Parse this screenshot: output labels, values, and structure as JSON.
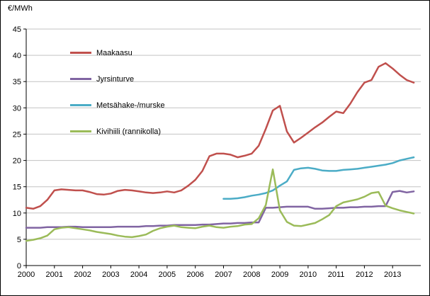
{
  "chart_data": {
    "type": "line",
    "title": "",
    "xlabel": "",
    "ylabel": "€/MWh",
    "ylim": [
      0,
      45
    ],
    "ytick_step": 5,
    "xlim": [
      2000,
      2014
    ],
    "xticks": [
      2000,
      2001,
      2002,
      2003,
      2004,
      2005,
      2006,
      2007,
      2008,
      2009,
      2010,
      2011,
      2012,
      2013
    ],
    "grid": true,
    "legend_position": "top-left-inside",
    "series": [
      {
        "name": "Maakaasu",
        "color": "#c0504d",
        "x_start": 2000,
        "x_step": 0.25,
        "values": [
          11.0,
          10.8,
          11.3,
          12.5,
          14.3,
          14.5,
          14.4,
          14.3,
          14.3,
          14.0,
          13.6,
          13.5,
          13.7,
          14.2,
          14.4,
          14.3,
          14.1,
          13.9,
          13.8,
          13.9,
          14.1,
          13.9,
          14.3,
          15.2,
          16.3,
          18.0,
          20.8,
          21.3,
          21.3,
          21.1,
          20.6,
          20.9,
          21.3,
          22.8,
          26.0,
          29.5,
          30.4,
          25.5,
          23.4,
          24.3,
          25.3,
          26.3,
          27.2,
          28.3,
          29.3,
          29.0,
          30.8,
          33.0,
          34.8,
          35.3,
          37.8,
          38.5,
          37.5,
          36.3,
          35.3,
          34.8
        ]
      },
      {
        "name": "Jyrsinturve",
        "color": "#8064a2",
        "x_start": 2000,
        "x_step": 0.25,
        "values": [
          7.2,
          7.2,
          7.2,
          7.3,
          7.3,
          7.3,
          7.4,
          7.4,
          7.3,
          7.3,
          7.3,
          7.3,
          7.3,
          7.4,
          7.4,
          7.4,
          7.4,
          7.5,
          7.5,
          7.6,
          7.6,
          7.7,
          7.7,
          7.7,
          7.7,
          7.8,
          7.8,
          7.9,
          8.0,
          8.0,
          8.1,
          8.1,
          8.2,
          8.2,
          11.0,
          11.0,
          11.1,
          11.2,
          11.2,
          11.2,
          11.2,
          10.8,
          10.8,
          10.9,
          11.0,
          11.0,
          11.1,
          11.1,
          11.2,
          11.2,
          11.3,
          11.3,
          14.0,
          14.2,
          13.9,
          14.1
        ]
      },
      {
        "name": "Metsähake-/murske",
        "color": "#4bacc6",
        "x_start": 2007,
        "x_step": 0.25,
        "values": [
          12.7,
          12.7,
          12.8,
          13.0,
          13.3,
          13.5,
          13.8,
          14.3,
          15.2,
          16.0,
          18.2,
          18.5,
          18.6,
          18.4,
          18.1,
          18.0,
          18.0,
          18.2,
          18.3,
          18.4,
          18.6,
          18.8,
          19.0,
          19.2,
          19.5,
          20.0,
          20.3,
          20.6
        ]
      },
      {
        "name": "Kivihiili (rannikolla)",
        "color": "#9bbb59",
        "x_start": 2000,
        "x_step": 0.25,
        "values": [
          4.7,
          4.9,
          5.2,
          5.7,
          6.9,
          7.2,
          7.3,
          7.1,
          6.9,
          6.7,
          6.4,
          6.2,
          6.0,
          5.7,
          5.5,
          5.4,
          5.6,
          5.9,
          6.6,
          7.1,
          7.4,
          7.6,
          7.3,
          7.2,
          7.1,
          7.4,
          7.6,
          7.3,
          7.2,
          7.4,
          7.5,
          7.8,
          7.9,
          9.0,
          11.5,
          18.3,
          10.5,
          8.3,
          7.6,
          7.5,
          7.8,
          8.1,
          8.8,
          9.6,
          11.3,
          12.0,
          12.3,
          12.6,
          13.1,
          13.8,
          14.0,
          11.4,
          10.9,
          10.5,
          10.2,
          9.9
        ]
      }
    ]
  }
}
